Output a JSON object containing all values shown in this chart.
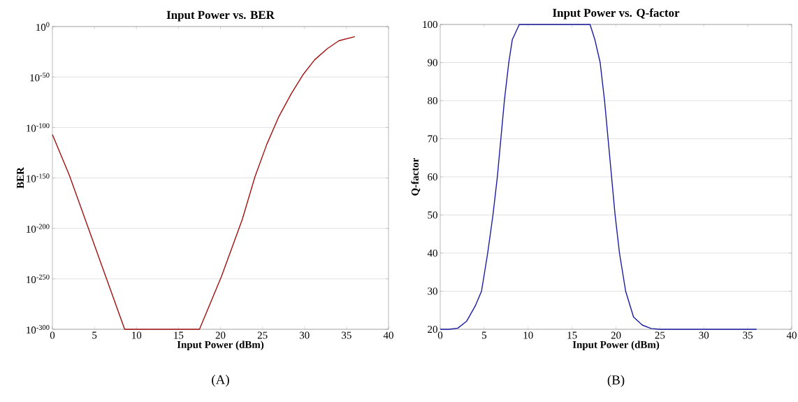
{
  "chart_data": [
    {
      "type": "line",
      "title": "Input Power vs. BER",
      "xlabel": "Input Power (dBm)",
      "ylabel": "BER",
      "annotations": [
        "(A)"
      ],
      "color": "#a01010",
      "log": "y",
      "grid": "y",
      "x": [
        0,
        2,
        8.6,
        17.5,
        20.1,
        22.6,
        24.1,
        25.5,
        26.9,
        28.4,
        29.8,
        31.2,
        32.7,
        34.1,
        36
      ],
      "values": [
        1e-107,
        1e-147,
        1e-300,
        1e-300,
        1e-248,
        1e-191,
        1e-149,
        1e-117,
        1e-90,
        1e-67,
        1e-48,
        1e-33,
        1e-22,
        1e-14,
        1e-10
      ],
      "xlim": [
        0,
        40
      ],
      "xticks": [
        0,
        5,
        10,
        15,
        20,
        25,
        30,
        35,
        40
      ],
      "ylim": [
        1e-300,
        1
      ],
      "yticks": [
        {
          "value": 1e-300,
          "label": "10$^{-300}$"
        },
        {
          "value": 1e-250,
          "label": "10$^{-250}$"
        },
        {
          "value": 1e-200,
          "label": "10$^{-200}$"
        },
        {
          "value": 1e-150,
          "label": "10$^{-150}$"
        },
        {
          "value": 1e-100,
          "label": "10$^{-100}$"
        },
        {
          "value": 1e-50,
          "label": "10$^{-50}$"
        },
        {
          "value": 1,
          "label": "10$^{0}$"
        }
      ]
    },
    {
      "type": "line",
      "title": "Input Power vs. Q-factor",
      "xlabel": "Input Power (dBm)",
      "ylabel": "Q-factor",
      "annotations": [
        "(B)"
      ],
      "color": "#1a1aa0",
      "grid": "y",
      "x": [
        0,
        1,
        2,
        3,
        4,
        4.7,
        5.4,
        6.0,
        6.5,
        6.9,
        7.3,
        7.8,
        8.2,
        9.0,
        17.05,
        17.6,
        18.2,
        18.7,
        19.1,
        19.5,
        19.9,
        20.4,
        21.1,
        22,
        23,
        24,
        25,
        36
      ],
      "values": [
        20,
        20,
        20.3,
        22.1,
        26.2,
        30,
        40,
        50,
        60,
        70,
        80,
        90,
        96,
        100,
        100,
        96,
        90,
        80,
        70,
        60,
        50,
        40,
        30,
        23.2,
        21.1,
        20.2,
        20,
        20
      ],
      "xlim": [
        0,
        40
      ],
      "xticks": [
        0,
        5,
        10,
        15,
        20,
        25,
        30,
        35,
        40
      ],
      "ylim": [
        20,
        100
      ],
      "yticks": [
        20,
        30,
        40,
        50,
        60,
        70,
        80,
        90,
        100
      ]
    }
  ]
}
